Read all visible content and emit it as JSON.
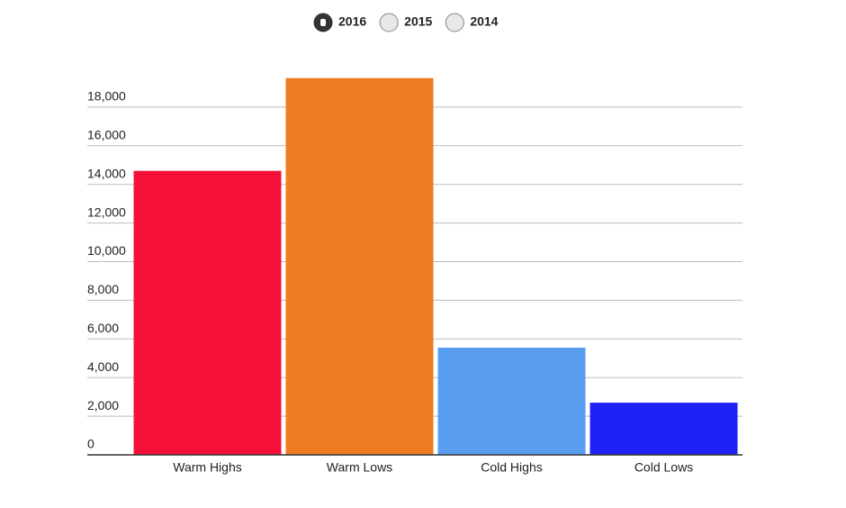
{
  "chart_data": {
    "type": "bar",
    "legend": {
      "options": [
        "2016",
        "2015",
        "2014"
      ],
      "selected": 0
    },
    "categories": [
      "Warm Highs",
      "Warm Lows",
      "Cold Highs",
      "Cold Lows"
    ],
    "values": [
      14700,
      19500,
      5550,
      2700
    ],
    "colors": [
      "#f5103a",
      "#ee7c22",
      "#589cf0",
      "#1e22f5"
    ],
    "ylim": [
      0,
      20000
    ],
    "yticks": [
      0,
      {
        "value": 2000,
        "label": "2,000"
      },
      {
        "value": 4000,
        "label": "4,000"
      },
      {
        "value": 6000,
        "label": "6,000"
      },
      {
        "value": 8000,
        "label": "8,000"
      },
      {
        "value": 10000,
        "label": "10,000"
      },
      {
        "value": 12000,
        "label": "12,000"
      },
      {
        "value": 14000,
        "label": "14,000"
      },
      {
        "value": 16000,
        "label": "16,000"
      },
      {
        "value": 18000,
        "label": "18,000"
      }
    ],
    "grid": true
  }
}
